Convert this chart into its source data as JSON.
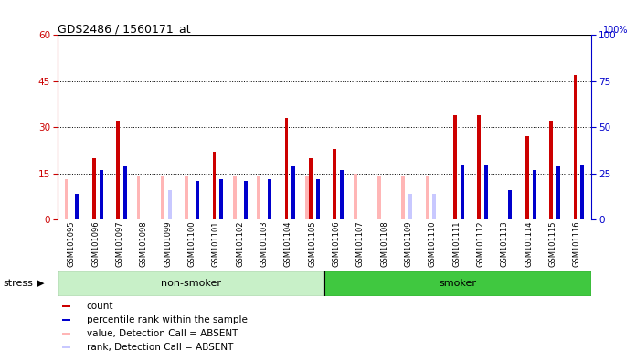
{
  "title": "GDS2486 / 1560171_at",
  "samples": [
    "GSM101095",
    "GSM101096",
    "GSM101097",
    "GSM101098",
    "GSM101099",
    "GSM101100",
    "GSM101101",
    "GSM101102",
    "GSM101103",
    "GSM101104",
    "GSM101105",
    "GSM101106",
    "GSM101107",
    "GSM101108",
    "GSM101109",
    "GSM101110",
    "GSM101111",
    "GSM101112",
    "GSM101113",
    "GSM101114",
    "GSM101115",
    "GSM101116"
  ],
  "count": [
    0,
    20,
    32,
    0,
    0,
    0,
    22,
    0,
    0,
    33,
    20,
    23,
    0,
    0,
    0,
    0,
    34,
    34,
    0,
    27,
    32,
    47
  ],
  "pct_rank": [
    14,
    27,
    29,
    0,
    0,
    21,
    22,
    21,
    22,
    29,
    22,
    27,
    0,
    0,
    0,
    0,
    30,
    30,
    16,
    27,
    29,
    30
  ],
  "absent_value": [
    13,
    0,
    0,
    14,
    14,
    14,
    0,
    14,
    14,
    0,
    14,
    0,
    15,
    14,
    14,
    14,
    0,
    0,
    0,
    0,
    0,
    0
  ],
  "absent_rank": [
    0,
    0,
    0,
    0,
    16,
    0,
    0,
    0,
    0,
    0,
    0,
    0,
    0,
    0,
    14,
    14,
    0,
    0,
    0,
    0,
    0,
    0
  ],
  "nonsmoker_count": 11,
  "smoker_count": 11,
  "group_labels": [
    "non-smoker",
    "smoker"
  ],
  "stress_label": "stress",
  "ylim_left": [
    0,
    60
  ],
  "ylim_right": [
    0,
    100
  ],
  "yticks_left": [
    0,
    15,
    30,
    45,
    60
  ],
  "yticks_right": [
    0,
    25,
    50,
    75,
    100
  ],
  "bg_color": "#d4d4d4",
  "bar_width": 0.15,
  "count_color": "#cc0000",
  "pct_color": "#0000cc",
  "absent_val_color": "#ffb6b6",
  "absent_rank_color": "#c8c8ff",
  "nonsmoker_bg": "#c8f0c8",
  "smoker_bg": "#40c840",
  "left_axis_color": "#cc0000",
  "right_axis_color": "#0000cc"
}
